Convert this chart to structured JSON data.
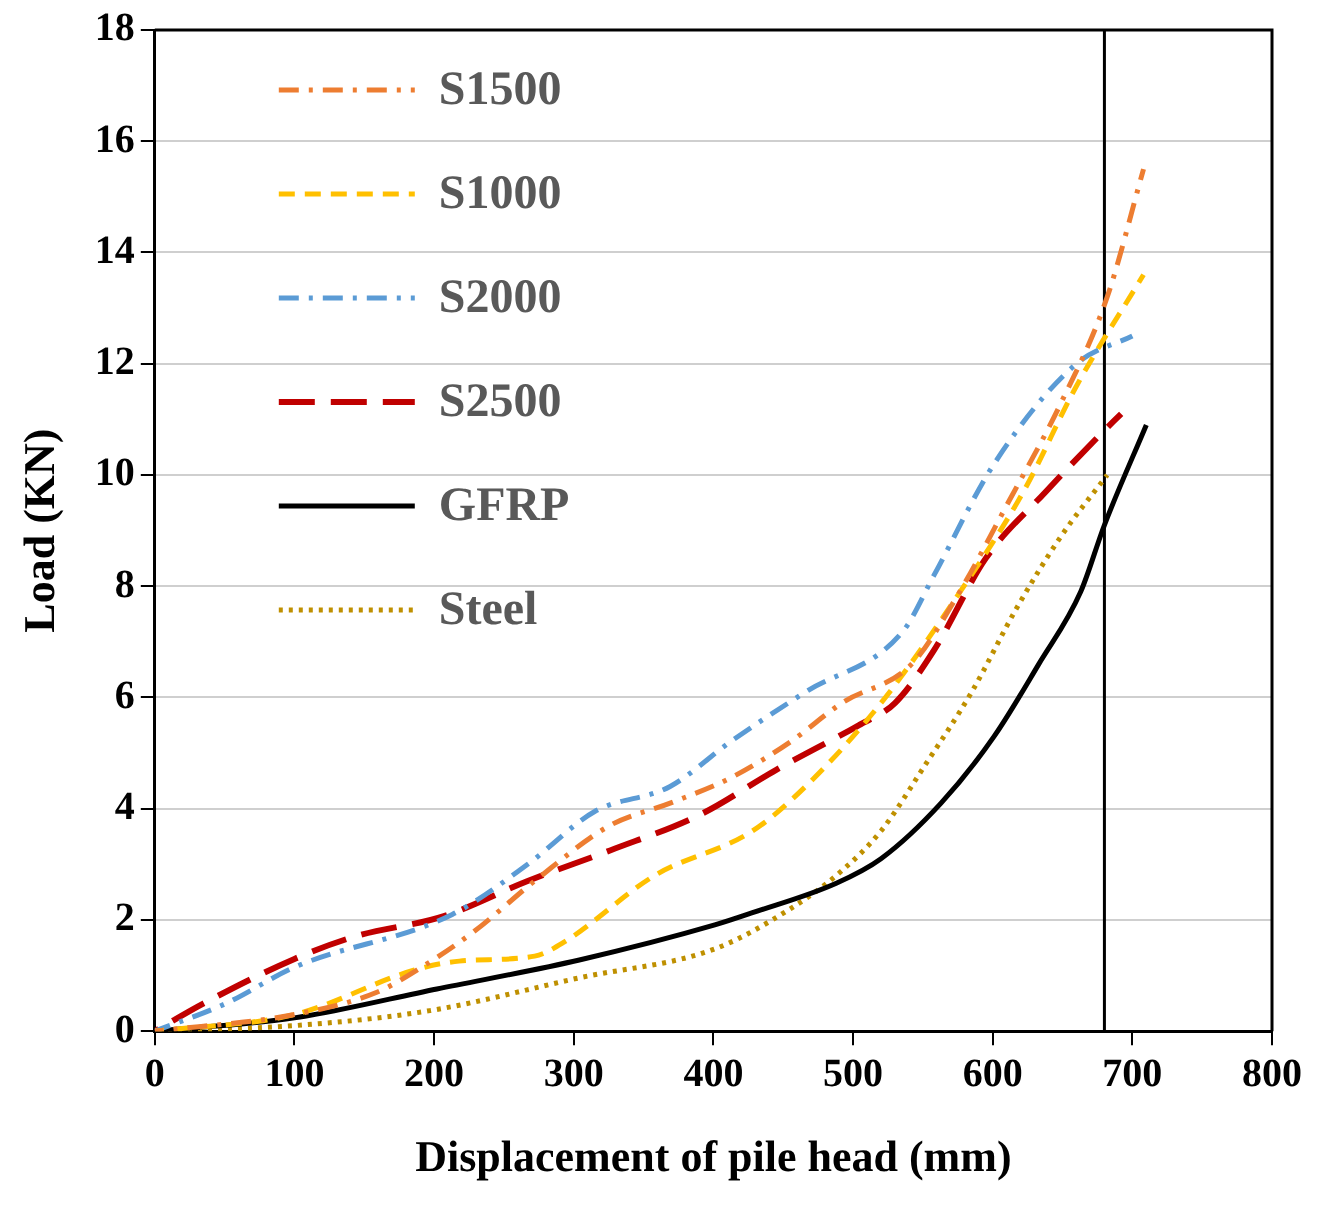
{
  "chart_data": {
    "type": "line",
    "xlabel": "Displacement of pile head (mm)",
    "ylabel": "Load (KN)",
    "xlim": [
      0,
      800
    ],
    "xticks": [
      0,
      100,
      200,
      300,
      400,
      500,
      600,
      700,
      800
    ],
    "ylim": [
      0,
      18
    ],
    "yticks": [
      0,
      2,
      4,
      6,
      8,
      10,
      12,
      14,
      16,
      18
    ],
    "grid": "y",
    "legend": "top left",
    "marker": "none",
    "ref_lines": [
      {
        "axis": "x",
        "value": 680,
        "color": "#000000",
        "line_style": "solid"
      }
    ],
    "series": [
      {
        "name": "S1500",
        "color": "#ed7d31",
        "line_style": "dashdot",
        "x": [
          0,
          100,
          159,
          191,
          229,
          272,
          326,
          369,
          412,
          455,
          492,
          542,
          574,
          611,
          649,
          682,
          708
        ],
        "values": [
          0,
          0.3,
          0.7,
          1.15,
          1.8,
          2.7,
          3.7,
          4.1,
          4.55,
          5.2,
          5.9,
          6.6,
          7.8,
          9.5,
          11.3,
          13.2,
          15.5
        ]
      },
      {
        "name": "S1000",
        "color": "#ffc000",
        "line_style": "dashed",
        "x": [
          0,
          100,
          186,
          218,
          272,
          293,
          358,
          428,
          466,
          520,
          574,
          622,
          660,
          708
        ],
        "values": [
          0,
          0.3,
          1.1,
          1.26,
          1.35,
          1.6,
          2.8,
          3.6,
          4.4,
          5.9,
          7.8,
          9.7,
          11.6,
          13.6
        ]
      },
      {
        "name": "S2000",
        "color": "#5b9bd5",
        "line_style": "dashdot",
        "x": [
          0,
          51,
          100,
          213,
          267,
          315,
          369,
          412,
          466,
          536,
          558,
          601,
          660,
          700
        ],
        "values": [
          0,
          0.5,
          1.15,
          2.1,
          3.0,
          3.95,
          4.4,
          5.2,
          6.1,
          7.2,
          8.2,
          10.2,
          12.0,
          12.5
        ]
      },
      {
        "name": "S2500",
        "color": "#c00000",
        "line_style": "longdash",
        "x": [
          0,
          35,
          100,
          143,
          207,
          267,
          326,
          391,
          445,
          504,
          530,
          558,
          595,
          638,
          676,
          692
        ],
        "values": [
          0,
          0.5,
          1.3,
          1.7,
          2.07,
          2.7,
          3.25,
          3.9,
          4.7,
          5.5,
          5.9,
          6.85,
          8.5,
          9.7,
          10.7,
          11.1
        ]
      },
      {
        "name": "GFRP",
        "color": "#000000",
        "line_style": "solid",
        "x": [
          0,
          100,
          202,
          304,
          401,
          428,
          488,
          520,
          563,
          601,
          633,
          663,
          680,
          710
        ],
        "values": [
          0,
          0.24,
          0.76,
          1.28,
          1.91,
          2.13,
          2.66,
          3.1,
          4.1,
          5.3,
          6.6,
          7.9,
          9.1,
          10.9
        ]
      },
      {
        "name": "Steel",
        "color": "#bf9000",
        "line_style": "dotted",
        "x": [
          0,
          100,
          197,
          304,
          401,
          455,
          488,
          520,
          552,
          585,
          617,
          649,
          682
        ],
        "values": [
          0,
          0.1,
          0.37,
          0.96,
          1.48,
          2.2,
          2.8,
          3.6,
          4.8,
          6.1,
          7.6,
          8.9,
          10.0
        ]
      }
    ]
  }
}
